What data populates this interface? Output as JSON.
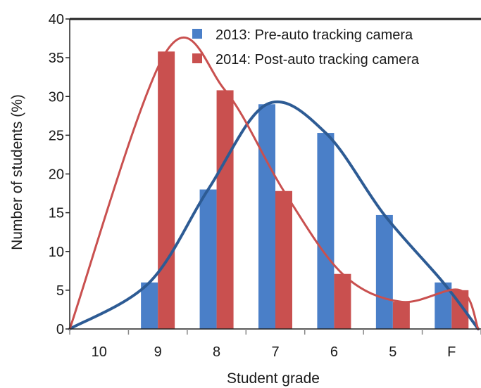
{
  "chart_data": {
    "type": "bar",
    "categories": [
      "10",
      "9",
      "8",
      "7",
      "6",
      "5",
      "F"
    ],
    "xlabel": "Student grade",
    "ylabel": "Number of students (%)",
    "ylim": [
      0,
      40
    ],
    "yticks": [
      0,
      5,
      10,
      15,
      20,
      25,
      30,
      35,
      40
    ],
    "grid": false,
    "legend_position": "top-right",
    "series": [
      {
        "name": "2013: Pre-auto tracking camera",
        "color": "#4a7fc8",
        "curve_color": "#2d5b94",
        "values": [
          0,
          6,
          18,
          29,
          25.3,
          14.7,
          6
        ]
      },
      {
        "name": "2014: Post-auto tracking camera",
        "color": "#c9504f",
        "curve_color": "#c9504f",
        "values": [
          0,
          35.8,
          30.8,
          17.8,
          7.1,
          3.5,
          5
        ]
      }
    ]
  }
}
